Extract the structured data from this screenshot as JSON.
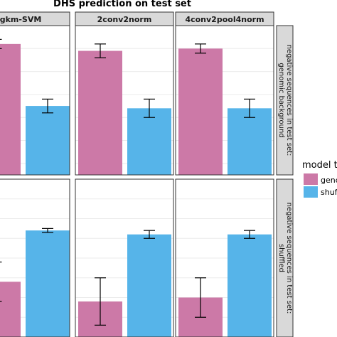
{
  "chart_data": {
    "type": "bar",
    "title": "DHS prediction on test set",
    "columns": [
      "gkm-SVM",
      "2conv2norm",
      "4conv2pool4norm"
    ],
    "rows": [
      "negative sequences in test set:\ngenomic background",
      "negative sequences in test set:\nshuffled"
    ],
    "categories": [
      "genomic",
      "shuffled"
    ],
    "ylim": [
      0,
      1
    ],
    "grid": true,
    "legend": {
      "title": "model t",
      "labels": [
        "genc",
        "shuf"
      ],
      "placement": "right"
    },
    "series": [
      {
        "name": "genomic",
        "values": [
          [
            0.92,
            0.89,
            0.9
          ],
          [
            0.74,
            0.69,
            0.7
          ]
        ],
        "err": [
          [
            0.02,
            0.03,
            0.02
          ],
          [
            0.05,
            0.06,
            0.05
          ]
        ]
      },
      {
        "name": "shuffled",
        "values": [
          [
            0.65,
            0.64,
            0.64
          ],
          [
            0.87,
            0.86,
            0.86
          ]
        ],
        "err": [
          [
            0.03,
            0.04,
            0.04
          ],
          [
            0.005,
            0.01,
            0.01
          ]
        ]
      }
    ],
    "colors": {
      "genomic": "#cc79a7",
      "shuffled": "#56b4e9",
      "strip": "#d9d9d9",
      "grid": "#ebebeb",
      "border": "#333333"
    }
  }
}
